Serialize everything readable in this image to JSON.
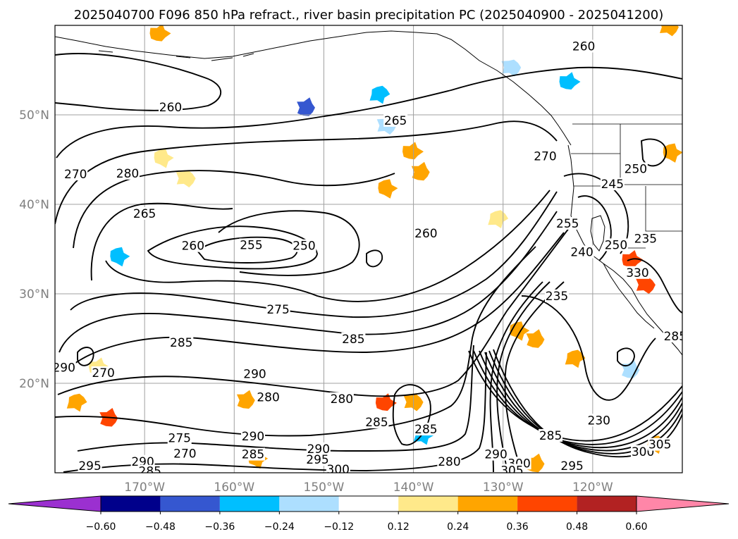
{
  "chart_data": {
    "type": "heatmap",
    "title": "2025040700 F096 850 hPa refract., river basin precipitation PC (2025040900 - 2025041200)",
    "map_extent": {
      "lon": [
        -180,
        -110
      ],
      "lat": [
        10,
        60
      ]
    },
    "grid": true,
    "y_ticks": [
      {
        "lat": 50,
        "label": "50°N"
      },
      {
        "lat": 40,
        "label": "40°N"
      },
      {
        "lat": 30,
        "label": "30°N"
      },
      {
        "lat": 20,
        "label": "20°N"
      }
    ],
    "x_ticks": [
      {
        "lon": -170,
        "label": "170°W"
      },
      {
        "lon": -160,
        "label": "160°W"
      },
      {
        "lon": -150,
        "label": "150°W"
      },
      {
        "lon": -140,
        "label": "140°W"
      },
      {
        "lon": -130,
        "label": "130°W"
      },
      {
        "lon": -120,
        "label": "120°W"
      }
    ],
    "contour_variable": "850 hPa refractivity",
    "contour_labels": [
      {
        "value": "260",
        "lon": -167.1,
        "lat": 50.8
      },
      {
        "value": "265",
        "lon": -142.0,
        "lat": 49.3
      },
      {
        "value": "260",
        "lon": -121.0,
        "lat": 57.6
      },
      {
        "value": "270",
        "lon": -177.7,
        "lat": 43.3
      },
      {
        "value": "280",
        "lon": -171.9,
        "lat": 43.4
      },
      {
        "value": "265",
        "lon": -170.0,
        "lat": 38.9
      },
      {
        "value": "260",
        "lon": -164.6,
        "lat": 35.3
      },
      {
        "value": "255",
        "lon": -158.1,
        "lat": 35.4
      },
      {
        "value": "250",
        "lon": -152.2,
        "lat": 35.3
      },
      {
        "value": "260",
        "lon": -138.6,
        "lat": 36.7
      },
      {
        "value": "270",
        "lon": -125.3,
        "lat": 45.3
      },
      {
        "value": "245",
        "lon": -117.8,
        "lat": 42.2
      },
      {
        "value": "250",
        "lon": -115.2,
        "lat": 43.9
      },
      {
        "value": "255",
        "lon": -122.8,
        "lat": 37.8
      },
      {
        "value": "240",
        "lon": -121.2,
        "lat": 34.6
      },
      {
        "value": "250",
        "lon": -117.4,
        "lat": 35.4
      },
      {
        "value": "235",
        "lon": -114.1,
        "lat": 36.1
      },
      {
        "value": "275",
        "lon": -155.1,
        "lat": 28.2
      },
      {
        "value": "285",
        "lon": -146.7,
        "lat": 24.9
      },
      {
        "value": "285",
        "lon": -165.9,
        "lat": 24.5
      },
      {
        "value": "235",
        "lon": -124.0,
        "lat": 29.7
      },
      {
        "value": "290",
        "lon": -157.7,
        "lat": 21.0
      },
      {
        "value": "270",
        "lon": -174.6,
        "lat": 21.1
      },
      {
        "value": "280",
        "lon": -156.2,
        "lat": 18.4
      },
      {
        "value": "280",
        "lon": -148.0,
        "lat": 18.2
      },
      {
        "value": "290",
        "lon": -179.0,
        "lat": 21.7
      },
      {
        "value": "285",
        "lon": -144.1,
        "lat": 15.6
      },
      {
        "value": "285",
        "lon": -138.6,
        "lat": 14.8
      },
      {
        "value": "230",
        "lon": -119.3,
        "lat": 15.8
      },
      {
        "value": "275",
        "lon": -166.1,
        "lat": 13.8
      },
      {
        "value": "290",
        "lon": -157.9,
        "lat": 14.0
      },
      {
        "value": "270",
        "lon": -165.5,
        "lat": 12.1
      },
      {
        "value": "285",
        "lon": -157.9,
        "lat": 12.0
      },
      {
        "value": "290",
        "lon": -150.6,
        "lat": 12.6
      },
      {
        "value": "295",
        "lon": -150.7,
        "lat": 11.4
      },
      {
        "value": "285",
        "lon": -124.7,
        "lat": 14.1
      },
      {
        "value": "280",
        "lon": -136.0,
        "lat": 11.2
      },
      {
        "value": "290",
        "lon": -130.8,
        "lat": 12.0
      },
      {
        "value": "290",
        "lon": -170.2,
        "lat": 11.2
      },
      {
        "value": "295",
        "lon": -176.1,
        "lat": 10.7
      },
      {
        "value": "300",
        "lon": -148.4,
        "lat": 10.3
      },
      {
        "value": "300",
        "lon": -128.2,
        "lat": 11.0
      },
      {
        "value": "305",
        "lon": -129.0,
        "lat": 10.2
      },
      {
        "value": "295",
        "lon": -122.3,
        "lat": 10.7
      },
      {
        "value": "300",
        "lon": -114.4,
        "lat": 12.3
      },
      {
        "value": "305",
        "lon": -112.5,
        "lat": 13.1
      },
      {
        "value": "330",
        "lon": -115.0,
        "lat": 32.3
      },
      {
        "value": "285",
        "lon": -110.8,
        "lat": 25.2
      },
      {
        "value": "285",
        "lon": -169.4,
        "lat": 10.1
      }
    ],
    "colorbar": {
      "variable": "river basin precipitation PC",
      "extend": "both",
      "tick_labels": [
        "−0.60",
        "−0.48",
        "−0.36",
        "−0.24",
        "−0.12",
        "0.12",
        "0.24",
        "0.36",
        "0.48",
        "0.60"
      ],
      "bins": [
        {
          "range": "< -0.60",
          "color": "#9b30d0"
        },
        {
          "range": "-0.60 – -0.48",
          "color": "#00008b"
        },
        {
          "range": "-0.48 – -0.36",
          "color": "#3557d0"
        },
        {
          "range": "-0.36 – -0.24",
          "color": "#00bfff"
        },
        {
          "range": "-0.24 – -0.12",
          "color": "#addfff"
        },
        {
          "range": "-0.12 – 0.12",
          "color": "#ffffff"
        },
        {
          "range": "0.12 – 0.24",
          "color": "#ffe98a"
        },
        {
          "range": "0.24 – 0.36",
          "color": "#ffa500"
        },
        {
          "range": "0.36 – 0.48",
          "color": "#ff4500"
        },
        {
          "range": "0.48 – 0.60",
          "color": "#b22222"
        },
        {
          "range": "> 0.60",
          "color": "#ff86a8"
        }
      ]
    },
    "shaded_patches": [
      {
        "lon": -152.0,
        "lat": 50.8,
        "level": "-0.48 – -0.36"
      },
      {
        "lon": -143.8,
        "lat": 52.3,
        "level": "-0.36 – -0.24"
      },
      {
        "lon": -122.7,
        "lat": 53.7,
        "level": "-0.36 – -0.24"
      },
      {
        "lon": -129.1,
        "lat": 55.3,
        "level": "-0.24 – -0.12"
      },
      {
        "lon": -172.9,
        "lat": 34.2,
        "level": "-0.36 – -0.24"
      },
      {
        "lon": -115.8,
        "lat": 21.5,
        "level": "-0.24 – -0.12"
      },
      {
        "lon": -138.9,
        "lat": 14.2,
        "level": "-0.36 – -0.24"
      },
      {
        "lon": -140.2,
        "lat": 45.9,
        "level": "0.24 – 0.36"
      },
      {
        "lon": -143.0,
        "lat": 48.8,
        "level": "-0.24 – -0.12"
      },
      {
        "lon": -143.0,
        "lat": 41.8,
        "level": "0.24 – 0.36"
      },
      {
        "lon": -139.2,
        "lat": 43.6,
        "level": "0.24 – 0.36"
      },
      {
        "lon": -130.6,
        "lat": 38.4,
        "level": "0.12 – 0.24"
      },
      {
        "lon": -115.7,
        "lat": 33.8,
        "level": "0.36 – 0.48"
      },
      {
        "lon": -114.1,
        "lat": 31.0,
        "level": "0.36 – 0.48"
      },
      {
        "lon": -111.2,
        "lat": 45.8,
        "level": "0.24 – 0.36"
      },
      {
        "lon": -174.0,
        "lat": 16.1,
        "level": "0.36 – 0.48"
      },
      {
        "lon": -177.6,
        "lat": 17.9,
        "level": "0.24 – 0.36"
      },
      {
        "lon": -143.2,
        "lat": 17.8,
        "level": "0.36 – 0.48"
      },
      {
        "lon": -140.0,
        "lat": 17.9,
        "level": "0.24 – 0.36"
      },
      {
        "lon": -157.5,
        "lat": 11.6,
        "level": "0.24 – 0.36"
      },
      {
        "lon": -126.4,
        "lat": 11.0,
        "level": "0.24 – 0.36"
      },
      {
        "lon": -113.0,
        "lat": 13.2,
        "level": "0.24 – 0.36"
      },
      {
        "lon": -168.4,
        "lat": 59.1,
        "level": "0.24 – 0.36"
      },
      {
        "lon": -111.5,
        "lat": 59.8,
        "level": "0.24 – 0.36"
      },
      {
        "lon": -128.3,
        "lat": 25.9,
        "level": "0.24 – 0.36"
      },
      {
        "lon": -126.4,
        "lat": 24.9,
        "level": "0.24 – 0.36"
      },
      {
        "lon": -122.0,
        "lat": 22.8,
        "level": "0.24 – 0.36"
      },
      {
        "lon": -175.2,
        "lat": 21.8,
        "level": "0.12 – 0.24"
      },
      {
        "lon": -165.4,
        "lat": 42.9,
        "level": "0.12 – 0.24"
      },
      {
        "lon": -168.0,
        "lat": 45.2,
        "level": "0.12 – 0.24"
      },
      {
        "lon": -158.7,
        "lat": 18.1,
        "level": "0.24 – 0.36"
      }
    ]
  }
}
